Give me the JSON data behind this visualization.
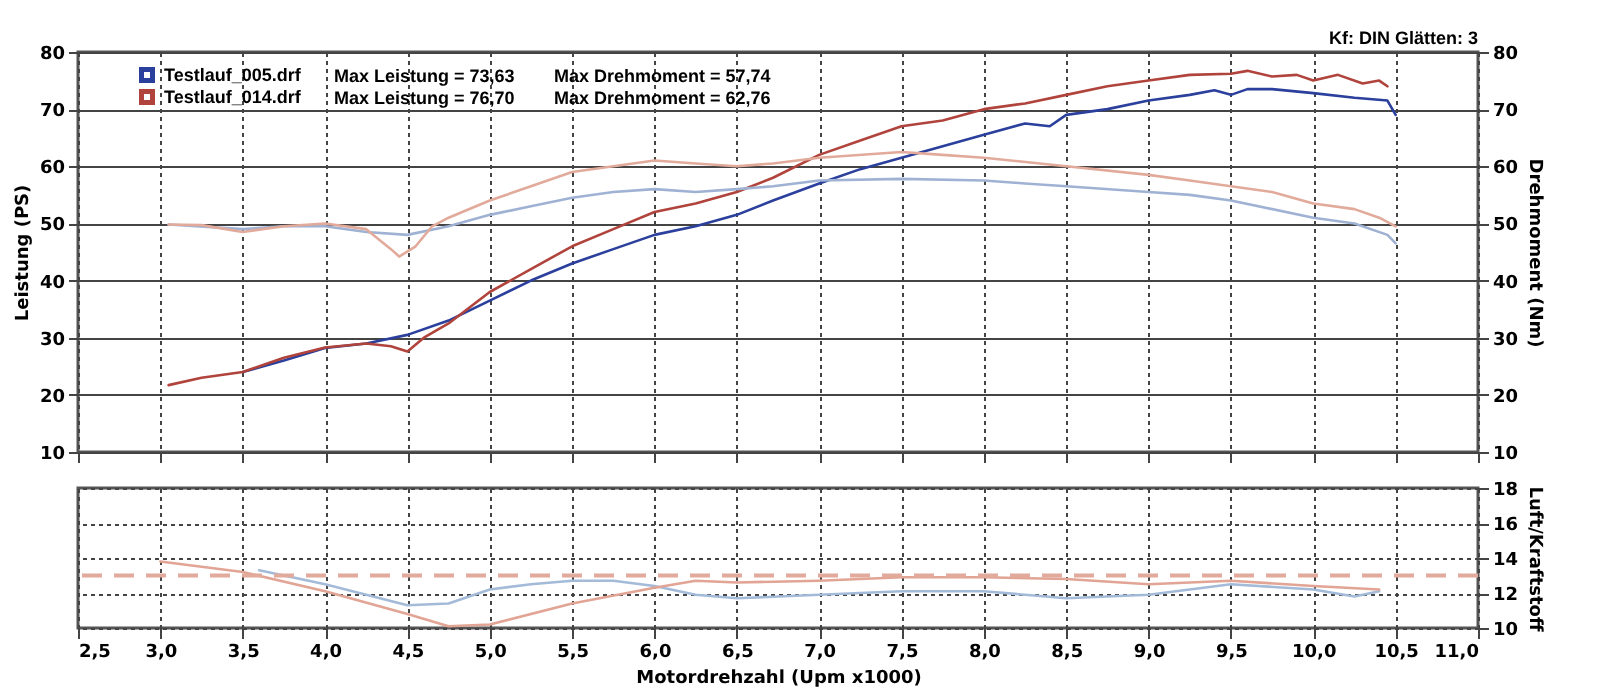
{
  "chart_data": [
    {
      "type": "line",
      "ylabel": "Leistung (PS)",
      "y2label": "Drehmoment (Nm)",
      "legend": "top left",
      "grid": true,
      "tick_labels": "y",
      "annotations": [
        "Max Leistung = 73,63",
        "Max Drehmoment = 57,74",
        "Max Leistung = 76,70",
        "Max Drehmoment = 62,76",
        "Kf: DIN  Glätten: 3"
      ],
      "xlim": [
        2.5,
        11
      ],
      "xticks": [
        2.5,
        3,
        3.5,
        4,
        4.5,
        5,
        5.5,
        6,
        6.5,
        7,
        7.5,
        8,
        8.5,
        9,
        9.5,
        10,
        10.5,
        11
      ],
      "ylim": [
        10,
        80
      ],
      "yticks": [
        10,
        20,
        30,
        40,
        50,
        60,
        70,
        80
      ],
      "y2lim": [
        10,
        80
      ],
      "y2ticks": [
        10,
        20,
        30,
        40,
        50,
        60,
        70,
        80
      ],
      "series": [
        {
          "name": "Testlauf_005.drf",
          "color": "#2b3f9c",
          "x": [
            3.5,
            3.75,
            4.0,
            4.25,
            4.5,
            4.75,
            5.0,
            5.25,
            5.5,
            5.75,
            6.0,
            6.25,
            6.5,
            6.72,
            7.0,
            7.25,
            7.5,
            7.75,
            8.0,
            8.25,
            8.4,
            8.5,
            8.75,
            9.0,
            9.25,
            9.4,
            9.5,
            9.6,
            9.75,
            10.0,
            10.25,
            10.45,
            10.5
          ],
          "values": [
            24,
            26,
            28.2,
            29,
            30.5,
            33,
            36.5,
            40,
            43,
            45.5,
            48,
            49.5,
            51.5,
            54,
            57,
            59.5,
            61.5,
            63.5,
            65.5,
            67.5,
            67,
            69,
            70,
            71.5,
            72.5,
            73.3,
            72.5,
            73.5,
            73.5,
            72.8,
            72,
            71.5,
            69
          ]
        },
        {
          "name": "Testlauf_014.drf",
          "color": "#b0443c",
          "x": [
            3.05,
            3.25,
            3.5,
            3.75,
            4.0,
            4.25,
            4.4,
            4.5,
            4.6,
            4.75,
            5.0,
            5.25,
            5.5,
            5.75,
            6.0,
            6.25,
            6.5,
            6.72,
            7.0,
            7.25,
            7.5,
            7.75,
            8.0,
            8.25,
            8.5,
            8.75,
            9.0,
            9.25,
            9.5,
            9.6,
            9.75,
            9.9,
            10.0,
            10.15,
            10.3,
            10.4,
            10.45
          ],
          "values": [
            21.7,
            23,
            24,
            26.5,
            28.3,
            29,
            28.5,
            27.6,
            30,
            32.5,
            38,
            42,
            46,
            49,
            52,
            53.5,
            55.5,
            58,
            62,
            64.5,
            67,
            68,
            70,
            71,
            72.5,
            74,
            75,
            76,
            76.2,
            76.7,
            75.7,
            76,
            75,
            76,
            74.5,
            75,
            74
          ]
        },
        {
          "axis": "y2",
          "color": "#9fb2d4",
          "x": [
            3.05,
            3.5,
            3.75,
            4.0,
            4.25,
            4.5,
            4.75,
            5.0,
            5.25,
            5.5,
            5.75,
            6.0,
            6.25,
            6.5,
            6.72,
            7.0,
            7.5,
            8.0,
            8.25,
            8.5,
            9.0,
            9.25,
            9.5,
            10.0,
            10.25,
            10.45,
            10.5
          ],
          "values": [
            49.8,
            49,
            49.5,
            49.5,
            48.5,
            48,
            49.5,
            51.5,
            53,
            54.5,
            55.5,
            56,
            55.5,
            56,
            56.5,
            57.5,
            57.8,
            57.5,
            57,
            56.5,
            55.5,
            55,
            54,
            51,
            50,
            48,
            46.5
          ]
        },
        {
          "axis": "y2",
          "color": "#e2aa9a",
          "x": [
            3.05,
            3.25,
            3.5,
            3.75,
            4.0,
            4.25,
            4.4,
            4.45,
            4.55,
            4.65,
            4.75,
            5.0,
            5.25,
            5.5,
            5.75,
            6.0,
            6.25,
            6.5,
            6.72,
            7.0,
            7.5,
            7.75,
            8.0,
            8.5,
            9.0,
            9.25,
            9.5,
            9.75,
            10.0,
            10.25,
            10.4,
            10.5
          ],
          "values": [
            49.8,
            49.7,
            48.5,
            49.5,
            50,
            49,
            45.5,
            44.2,
            46,
            49.5,
            51,
            54,
            56.5,
            59,
            60,
            61,
            60.5,
            60,
            60.5,
            61.5,
            62.5,
            62,
            61.5,
            60,
            58.5,
            57.5,
            56.5,
            55.5,
            53.5,
            52.5,
            51,
            49.5
          ]
        }
      ]
    },
    {
      "type": "line",
      "xlabel": "Motordrehzahl (Upm x1000)",
      "y2label": "Luft/Kraftstoff",
      "grid": true,
      "xlim": [
        2.5,
        11
      ],
      "xticks": [
        {
          "value": 2.5,
          "label": "2,5"
        },
        {
          "value": 3,
          "label": "3,0"
        },
        {
          "value": 3.5,
          "label": "3,5"
        },
        {
          "value": 4,
          "label": "4,0"
        },
        {
          "value": 4.5,
          "label": "4,5"
        },
        {
          "value": 5,
          "label": "5,0"
        },
        {
          "value": 5.5,
          "label": "5,5"
        },
        {
          "value": 6,
          "label": "6,0"
        },
        {
          "value": 6.5,
          "label": "6,5"
        },
        {
          "value": 7,
          "label": "7,0"
        },
        {
          "value": 7.5,
          "label": "7,5"
        },
        {
          "value": 8,
          "label": "8,0"
        },
        {
          "value": 8.5,
          "label": "8,5"
        },
        {
          "value": 9,
          "label": "9,0"
        },
        {
          "value": 9.5,
          "label": "9,5"
        },
        {
          "value": 10,
          "label": "10,0"
        },
        {
          "value": 10.5,
          "label": "10,5"
        },
        {
          "value": 11,
          "label": "11,0"
        }
      ],
      "y2lim": [
        10,
        18
      ],
      "y2ticks": [
        10,
        12,
        14,
        16,
        18
      ],
      "ref_lines": [
        {
          "axis": "y2",
          "value": 13,
          "color": "#e2aa9a",
          "line_style": "dashed"
        }
      ],
      "series": [
        {
          "axis": "y2",
          "color": "#a3bbd9",
          "x": [
            3.6,
            4.0,
            4.5,
            4.75,
            5.0,
            5.25,
            5.5,
            5.75,
            6.0,
            6.25,
            6.5,
            7.0,
            7.5,
            8.0,
            8.5,
            9.0,
            9.5,
            10.0,
            10.25,
            10.4
          ],
          "values": [
            13.3,
            12.5,
            11.3,
            11.4,
            12.2,
            12.5,
            12.7,
            12.7,
            12.4,
            11.9,
            11.7,
            11.9,
            12.1,
            12.1,
            11.7,
            11.9,
            12.5,
            12.2,
            11.8,
            12.1
          ]
        },
        {
          "axis": "y2",
          "color": "#e2a494",
          "x": [
            3.0,
            3.5,
            4.0,
            4.5,
            4.75,
            5.0,
            5.5,
            6.0,
            6.25,
            6.5,
            7.0,
            7.5,
            8.0,
            8.5,
            9.0,
            9.5,
            10.0,
            10.4
          ],
          "values": [
            13.8,
            13.2,
            12.1,
            10.8,
            10.1,
            10.2,
            11.4,
            12.3,
            12.7,
            12.6,
            12.7,
            12.9,
            12.9,
            12.8,
            12.5,
            12.7,
            12.4,
            12.2
          ]
        }
      ]
    }
  ]
}
